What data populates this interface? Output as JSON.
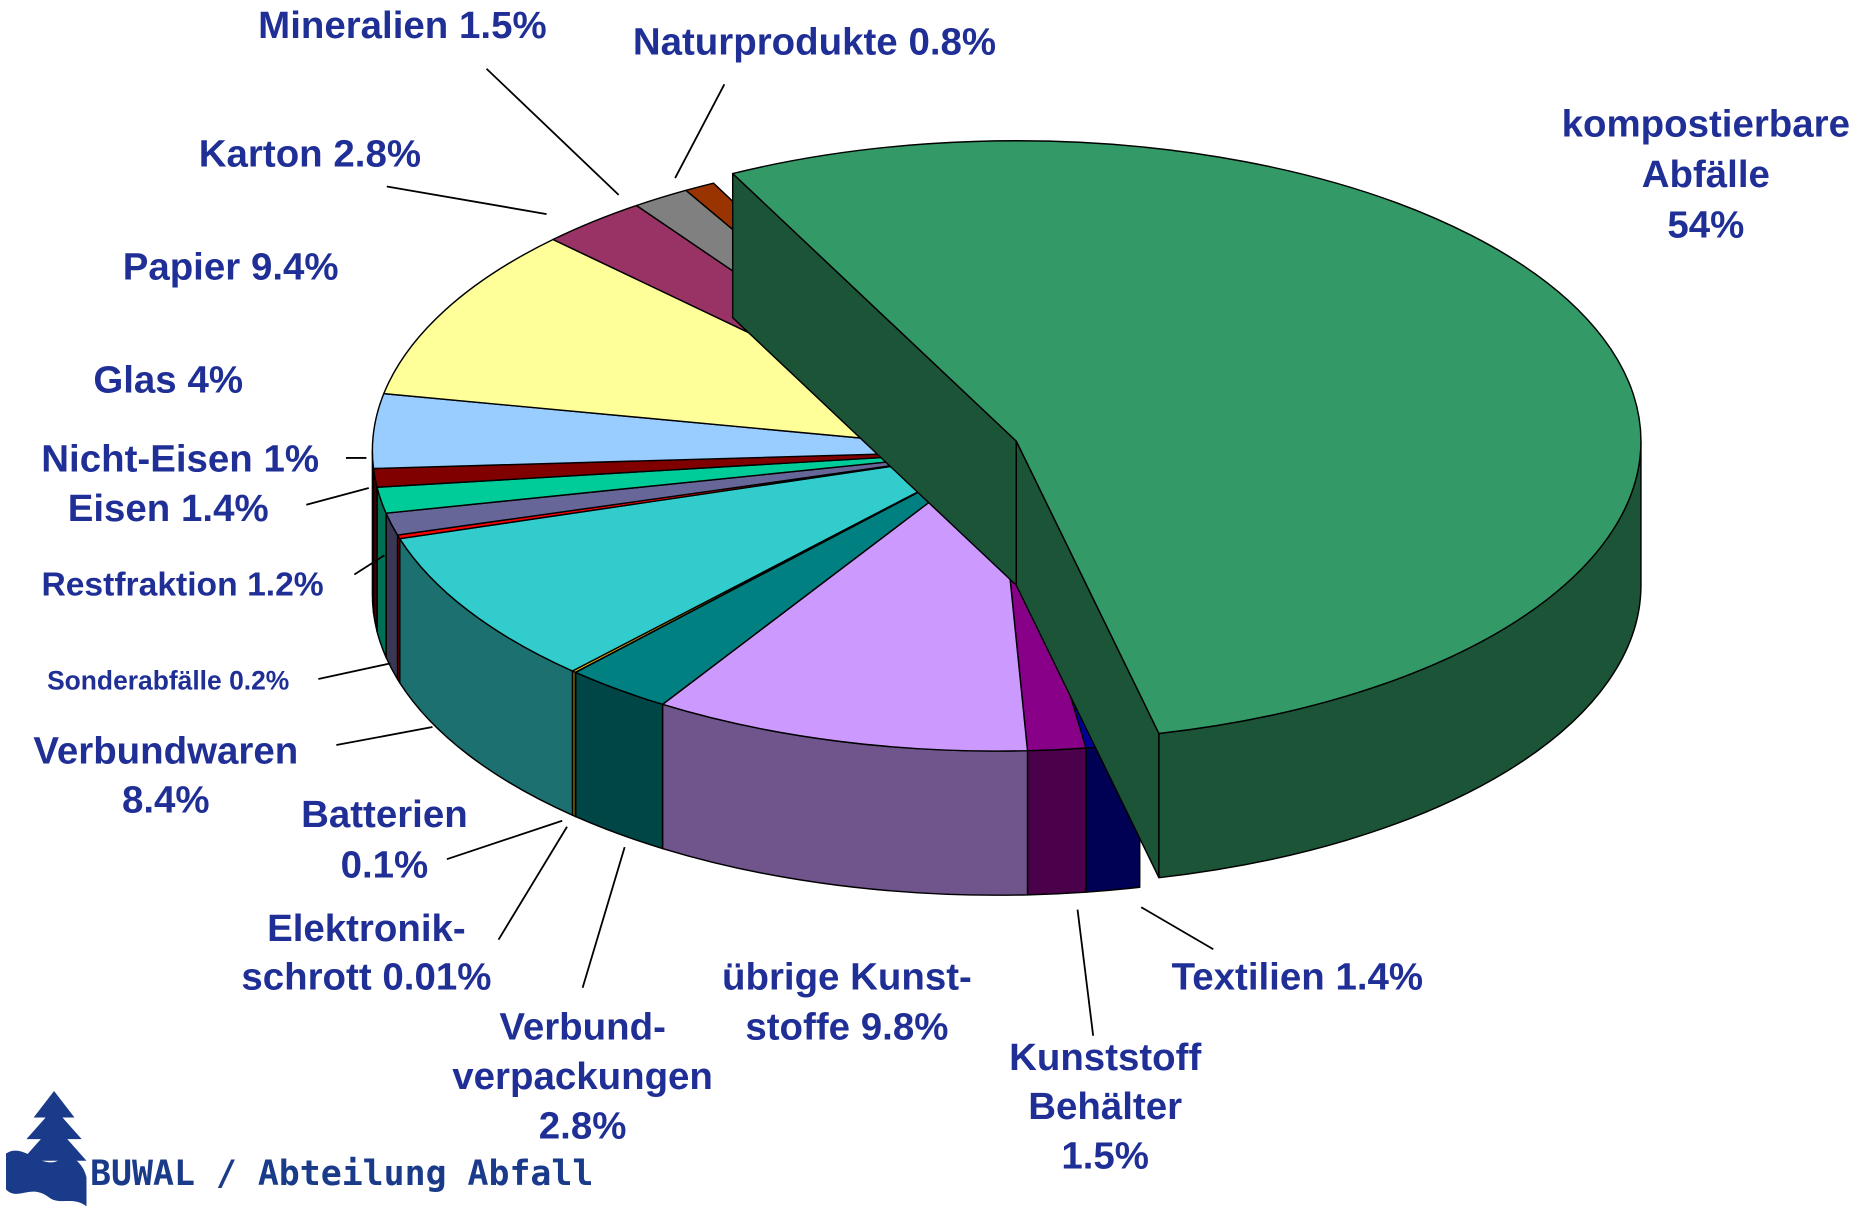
{
  "chart_data": {
    "type": "pie",
    "categories": [
      [
        "kompostierbare",
        "Abfälle"
      ],
      [
        "Textilien"
      ],
      [
        "Kunststoff",
        "Behälter"
      ],
      [
        "übrige Kunst-",
        "stoffe"
      ],
      [
        "Verbund-",
        "verpackungen"
      ],
      [
        "Elektronik-",
        "schrott"
      ],
      [
        "Batterien"
      ],
      [
        "Verbundwaren"
      ],
      [
        "Sonderabfälle"
      ],
      [
        "Restfraktion"
      ],
      [
        "Eisen"
      ],
      [
        "Nicht-Eisen"
      ],
      [
        "Glas"
      ],
      [
        "Papier"
      ],
      [
        "Karton"
      ],
      [
        "Mineralien"
      ],
      [
        "Naturprodukte"
      ]
    ],
    "values": [
      54,
      1.4,
      1.5,
      9.8,
      2.8,
      0.01,
      0.1,
      8.4,
      0.2,
      1.2,
      1.4,
      1,
      4,
      9.4,
      2.8,
      1.5,
      0.8
    ],
    "value_labels": [
      "54%",
      "1.4%",
      "1.5%",
      "9.8%",
      "2.8%",
      "0.01%",
      "0.1%",
      "8.4%",
      "0.2%",
      "1.2%",
      "1.4%",
      "1%",
      "4%",
      "9.4%",
      "2.8%",
      "1.5%",
      "0.8%"
    ],
    "colors": [
      "#339966",
      "#000099",
      "#880088",
      "#cc99ff",
      "#008080",
      "#ffffff",
      "#ffcc00",
      "#33cccc",
      "#ff0000",
      "#666699",
      "#00cc99",
      "#800000",
      "#99ccff",
      "#ffff99",
      "#993366",
      "#808080",
      "#993300"
    ],
    "footer": "BUWAL / Abteilung Abfall"
  }
}
